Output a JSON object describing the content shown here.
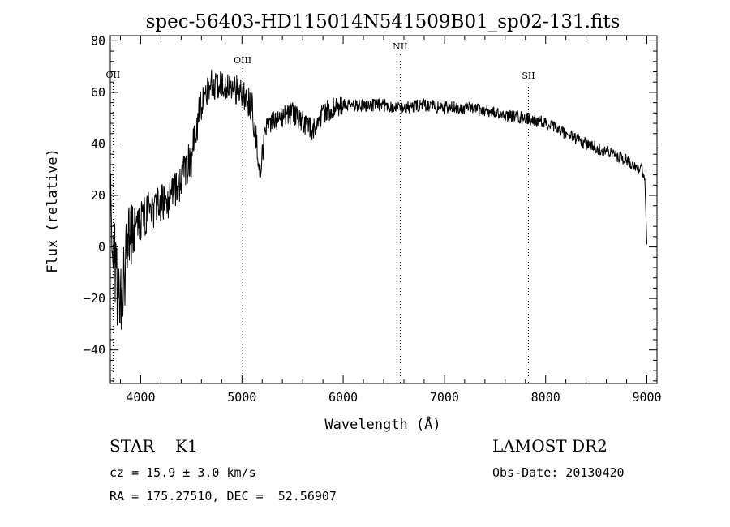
{
  "chart_data": {
    "type": "line",
    "title": "spec-56403-HD115014N541509B01_sp02-131.fits",
    "xlabel": "Wavelength (Å)",
    "ylabel": "Flux (relative)",
    "xlim": [
      3700,
      9100
    ],
    "ylim": [
      -53,
      82
    ],
    "x_ticks": [
      4000,
      5000,
      6000,
      7000,
      8000,
      9000
    ],
    "y_ticks": [
      -40,
      -20,
      0,
      20,
      40,
      60,
      80
    ],
    "x_tick_labels": [
      "4000",
      "5000",
      "6000",
      "7000",
      "8000",
      "9000"
    ],
    "y_tick_labels": [
      "−40",
      "−20",
      "0",
      "20",
      "40",
      "60",
      "80"
    ],
    "grid": false,
    "line_color": "#000000",
    "line_markers": [
      {
        "label": "OII",
        "wavelength": 3727
      },
      {
        "label": "OIII",
        "wavelength": 5007
      },
      {
        "label": "NII",
        "wavelength": 6563
      },
      {
        "label": "SII",
        "wavelength": 7830
      }
    ],
    "series": [
      {
        "x": [
          3700,
          3760,
          3820,
          3880,
          3940,
          4000,
          4100,
          4200,
          4300,
          4400,
          4500,
          4550,
          4600,
          4700,
          4800,
          4900,
          5000,
          5100,
          5180,
          5250,
          5350,
          5500,
          5700,
          5800,
          6000,
          6200,
          6400,
          6600,
          6800,
          7000,
          7200,
          7400,
          7600,
          7800,
          8000,
          8200,
          8400,
          8600,
          8800,
          8950,
          8980,
          9000
        ],
        "y": [
          20,
          -15,
          -20,
          5,
          12,
          10,
          15,
          16,
          20,
          25,
          35,
          45,
          55,
          63,
          62,
          62,
          60,
          54,
          30,
          48,
          50,
          52,
          45,
          52,
          55,
          55,
          55,
          54,
          55,
          54,
          54,
          53,
          51,
          50,
          48,
          44,
          40,
          37,
          34,
          30,
          28,
          1
        ]
      }
    ]
  },
  "footer": {
    "object_class": "STAR    K1",
    "survey": "LAMOST DR2",
    "redshift": "cz = 15.9 ± 3.0 km/s",
    "obs_date": "Obs-Date: 20130420",
    "coordinates": "RA = 175.27510, DEC =  52.56907"
  }
}
